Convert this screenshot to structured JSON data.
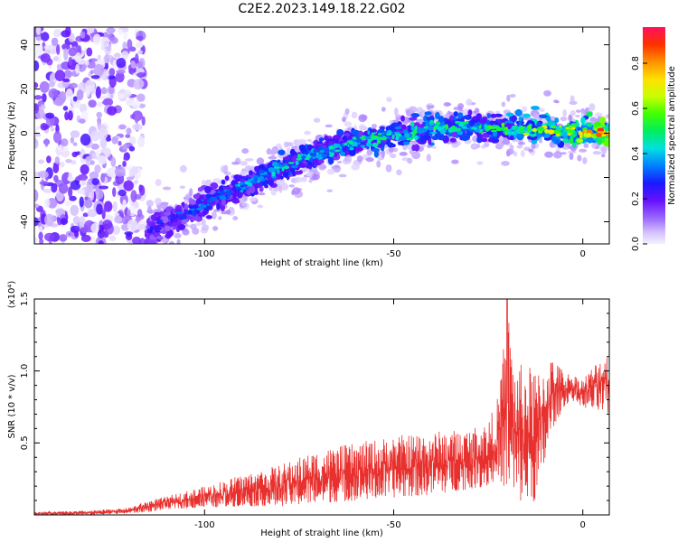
{
  "figure": {
    "title": "C2E2.2023.149.18.22.G02"
  },
  "chart_data": [
    {
      "type": "heatmap",
      "xlabel": "Height of straight line (km)",
      "ylabel": "Frequency (Hz)",
      "xlim": [
        -145,
        7
      ],
      "ylim": [
        -50,
        48
      ],
      "xticks": [
        -100,
        -50,
        0
      ],
      "yticks": [
        -40,
        -20,
        0,
        20,
        40
      ],
      "grid": false,
      "ridge": {
        "description_values": "center frequency of the strong band vs height",
        "x": [
          -115,
          -110,
          -105,
          -100,
          -95,
          -90,
          -85,
          -80,
          -75,
          -70,
          -65,
          -60,
          -55,
          -50,
          -45,
          -40,
          -35,
          -30,
          -25,
          -20,
          -15,
          -10,
          -5,
          0,
          5
        ],
        "y": [
          -44,
          -40,
          -36,
          -32,
          -28,
          -24,
          -20,
          -16,
          -12,
          -9,
          -6,
          -4,
          -2,
          -1,
          0,
          2,
          3,
          3,
          2,
          2,
          2,
          1,
          1,
          0,
          0
        ],
        "amplitude": [
          0.25,
          0.3,
          0.3,
          0.35,
          0.35,
          0.4,
          0.4,
          0.45,
          0.45,
          0.45,
          0.45,
          0.45,
          0.5,
          0.45,
          0.5,
          0.5,
          0.5,
          0.45,
          0.5,
          0.55,
          0.6,
          0.65,
          0.7,
          0.75,
          0.85
        ]
      },
      "noise_region_x": [
        -145,
        -116
      ]
    },
    {
      "type": "line",
      "xlabel": "Height of straight line (km)",
      "ylabel": "SNR (10 * v/v)",
      "yscale_note": "(x10⁴)",
      "xlim": [
        -145,
        7
      ],
      "ylim": [
        0,
        1.5
      ],
      "xticks": [
        -100,
        -50,
        0
      ],
      "yticks": [
        0.5,
        1.0,
        1.5
      ],
      "ytick_labels": [
        "0.5",
        "1.0",
        "1.5"
      ],
      "grid": false,
      "series_color": "#e8312f",
      "envelope": {
        "x": [
          -145,
          -130,
          -120,
          -115,
          -110,
          -100,
          -90,
          -80,
          -70,
          -60,
          -50,
          -40,
          -30,
          -25,
          -22,
          -20,
          -18,
          -15,
          -12,
          -10,
          -8,
          -5,
          -3,
          0,
          3,
          6,
          7
        ],
        "low": [
          0.0,
          0.0,
          0.01,
          0.02,
          0.04,
          0.05,
          0.06,
          0.06,
          0.08,
          0.1,
          0.12,
          0.14,
          0.18,
          0.2,
          0.25,
          0.15,
          0.1,
          0.08,
          0.1,
          0.35,
          0.6,
          0.75,
          0.8,
          0.75,
          0.72,
          0.7,
          0.68
        ],
        "high": [
          0.02,
          0.03,
          0.05,
          0.1,
          0.13,
          0.2,
          0.28,
          0.35,
          0.45,
          0.5,
          0.55,
          0.58,
          0.6,
          0.65,
          0.85,
          1.5,
          1.05,
          1.05,
          1.0,
          1.08,
          1.1,
          1.0,
          0.98,
          0.95,
          1.05,
          1.15,
          1.1
        ]
      }
    }
  ],
  "colorbar": {
    "label": "Normalized spectral amplitude",
    "ticks": [
      "0.0",
      "0.2",
      "0.4",
      "0.6",
      "0.8"
    ],
    "tick_values": [
      0.0,
      0.2,
      0.4,
      0.6,
      0.8
    ],
    "range": [
      0,
      0.96
    ]
  }
}
